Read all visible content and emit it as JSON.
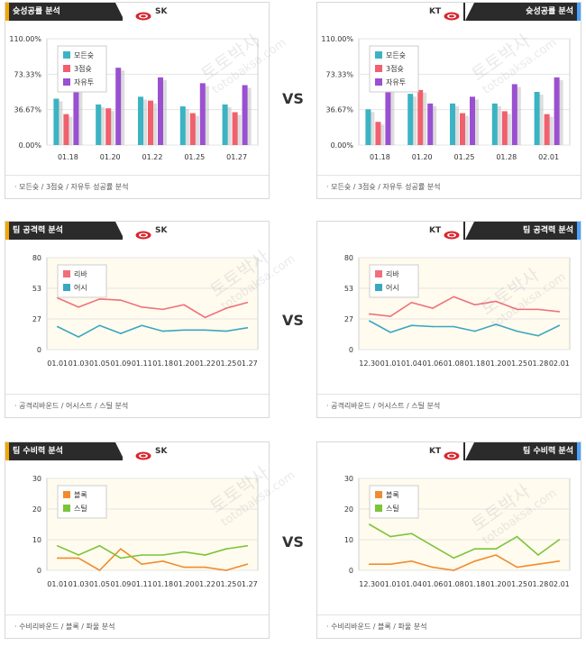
{
  "vs_label": "VS",
  "watermarks": [
    "토토박사",
    "totobaksa.com"
  ],
  "panels": [
    {
      "id": "shoot-sk",
      "side": "left",
      "title": "슛성공률 분석",
      "team": "SK",
      "footer": "모든슛 / 3점슛 / 자유투 성공률 분석",
      "chart_data": {
        "type": "bar",
        "categories": [
          "01.18",
          "01.20",
          "01.22",
          "01.25",
          "01.27"
        ],
        "y_ticks": [
          "0.00%",
          "36.67%",
          "73.33%",
          "110.00%"
        ],
        "ylim": [
          0,
          110
        ],
        "series": [
          {
            "name": "모든슛",
            "color": "#3bb3c3",
            "values": [
              48,
              42,
              50,
              40,
              42
            ]
          },
          {
            "name": "3점슛",
            "color": "#f0606e",
            "values": [
              32,
              38,
              46,
              33,
              34
            ]
          },
          {
            "name": "자유투",
            "color": "#9a50d0",
            "values": [
              84,
              80,
              70,
              64,
              62
            ]
          }
        ],
        "legend": "top-left"
      }
    },
    {
      "id": "shoot-kt",
      "side": "right",
      "title": "슛성공률 분석",
      "team": "KT",
      "footer": "모든슛 / 3점슛 / 자유투 성공률 분석",
      "chart_data": {
        "type": "bar",
        "categories": [
          "01.18",
          "01.20",
          "01.25",
          "01.28",
          "02.01"
        ],
        "y_ticks": [
          "0.00%",
          "36.67%",
          "73.33%",
          "110.00%"
        ],
        "ylim": [
          0,
          110
        ],
        "series": [
          {
            "name": "모든슛",
            "color": "#3bb3c3",
            "values": [
              37,
              53,
              43,
              43,
              55
            ]
          },
          {
            "name": "3점슛",
            "color": "#f0606e",
            "values": [
              24,
              57,
              33,
              35,
              32
            ]
          },
          {
            "name": "자유투",
            "color": "#9a50d0",
            "values": [
              60,
              43,
              50,
              63,
              70
            ]
          }
        ],
        "legend": "top-left"
      }
    },
    {
      "id": "attack-sk",
      "side": "left",
      "title": "팀 공격력 분석",
      "team": "SK",
      "footer": "공격리바운드 / 어시스트 / 스틸 분석",
      "chart_data": {
        "type": "line",
        "categories": [
          "01.01",
          "01.03",
          "01.05",
          "01.09",
          "01.11",
          "01.18",
          "01.20",
          "01.22",
          "01.25",
          "01.27"
        ],
        "y_ticks": [
          "0",
          "27",
          "53",
          "80"
        ],
        "ylim": [
          0,
          80
        ],
        "series": [
          {
            "name": "리바",
            "color": "#f0707a",
            "values": [
              45,
              37,
              44,
              43,
              37,
              35,
              39,
              28,
              36,
              41
            ]
          },
          {
            "name": "어시",
            "color": "#3aa7c0",
            "values": [
              20,
              11,
              21,
              14,
              21,
              16,
              17,
              17,
              16,
              19
            ]
          }
        ],
        "legend": "top-left"
      }
    },
    {
      "id": "attack-kt",
      "side": "right",
      "title": "팀 공격력 분석",
      "team": "KT",
      "footer": "공격리바운드 / 어시스트 / 스틸 분석",
      "chart_data": {
        "type": "line",
        "categories": [
          "12.30",
          "01.01",
          "01.04",
          "01.06",
          "01.08",
          "01.18",
          "01.20",
          "01.25",
          "01.28",
          "02.01"
        ],
        "y_ticks": [
          "0",
          "27",
          "53",
          "80"
        ],
        "ylim": [
          0,
          80
        ],
        "series": [
          {
            "name": "리바",
            "color": "#f0707a",
            "values": [
              31,
              29,
              41,
              36,
              46,
              39,
              42,
              35,
              35,
              33
            ]
          },
          {
            "name": "어시",
            "color": "#3aa7c0",
            "values": [
              25,
              15,
              21,
              20,
              20,
              16,
              22,
              16,
              12,
              21
            ]
          }
        ],
        "legend": "top-left"
      }
    },
    {
      "id": "defense-sk",
      "side": "left",
      "title": "팀 수비력 분석",
      "team": "SK",
      "footer": "수비리바운드 / 블록 / 파울 분석",
      "chart_data": {
        "type": "line",
        "categories": [
          "01.01",
          "01.03",
          "01.05",
          "01.09",
          "01.11",
          "01.18",
          "01.20",
          "01.22",
          "01.25",
          "01.27"
        ],
        "y_ticks": [
          "0",
          "10",
          "20",
          "30"
        ],
        "ylim": [
          0,
          30
        ],
        "series": [
          {
            "name": "블록",
            "color": "#f08c30",
            "values": [
              4,
              4,
              0,
              7,
              2,
              3,
              1,
              1,
              0,
              2
            ]
          },
          {
            "name": "스틸",
            "color": "#7cc43a",
            "values": [
              8,
              5,
              8,
              4,
              5,
              5,
              6,
              5,
              7,
              8
            ]
          }
        ],
        "legend": "top-left"
      }
    },
    {
      "id": "defense-kt",
      "side": "right",
      "title": "팀 수비력 분석",
      "team": "KT",
      "footer": "수비리바운드 / 블록 / 파울 분석",
      "chart_data": {
        "type": "line",
        "categories": [
          "12.30",
          "01.01",
          "01.04",
          "01.06",
          "01.08",
          "01.18",
          "01.20",
          "01.25",
          "01.28",
          "02.01"
        ],
        "y_ticks": [
          "0",
          "10",
          "20",
          "30"
        ],
        "ylim": [
          0,
          30
        ],
        "series": [
          {
            "name": "블록",
            "color": "#f08c30",
            "values": [
              2,
              2,
              3,
              1,
              0,
              3,
              5,
              1,
              2,
              3
            ]
          },
          {
            "name": "스틸",
            "color": "#7cc43a",
            "values": [
              15,
              11,
              12,
              8,
              4,
              7,
              7,
              11,
              5,
              10
            ]
          }
        ],
        "legend": "top-left"
      }
    }
  ]
}
